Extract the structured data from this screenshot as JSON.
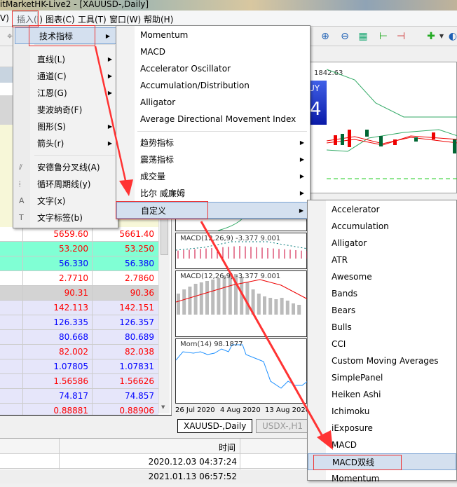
{
  "window": {
    "title": "itMarketHK-Live2 - [XAUUSD-,Daily]"
  },
  "menubar": {
    "items": [
      "V)",
      "插入(I)",
      "图表(C)",
      "工具(T)",
      "窗口(W)",
      "帮助(H)"
    ]
  },
  "insert_menu": {
    "items": [
      {
        "label": "技术指标",
        "submenu": true,
        "highlighted": true
      },
      {
        "label": "直线(L)",
        "submenu": true
      },
      {
        "label": "通道(C)",
        "submenu": true
      },
      {
        "label": "江恩(G)",
        "submenu": true
      },
      {
        "label": "斐波纳奇(F)",
        "submenu": false
      },
      {
        "label": "图形(S)",
        "submenu": true
      },
      {
        "label": "箭头(r)",
        "submenu": true
      },
      {
        "label": "安德鲁分叉线(A)",
        "icon": "andrews-pitchfork-icon"
      },
      {
        "label": "循环周期线(y)",
        "icon": "cycle-lines-icon"
      },
      {
        "label": "文字(x)",
        "icon": "text-icon"
      },
      {
        "label": "文字标签(b)",
        "icon": "text-label-icon"
      }
    ]
  },
  "indicators_menu": {
    "items": [
      {
        "label": "Momentum"
      },
      {
        "label": "MACD"
      },
      {
        "label": "Accelerator Oscillator"
      },
      {
        "label": "Accumulation/Distribution"
      },
      {
        "label": "Alligator"
      },
      {
        "label": "Average Directional Movement Index"
      },
      {
        "label": "趋势指标",
        "submenu": true
      },
      {
        "label": "震荡指标",
        "submenu": true
      },
      {
        "label": "成交量",
        "submenu": true
      },
      {
        "label": "比尔 威廉姆",
        "submenu": true
      },
      {
        "label": "自定义",
        "submenu": true,
        "highlighted": true
      }
    ]
  },
  "custom_menu": {
    "items": [
      "Accelerator",
      "Accumulation",
      "Alligator",
      "ATR",
      "Awesome",
      "Bands",
      "Bears",
      "Bulls",
      "CCI",
      "Custom Moving Averages",
      "SimplePanel",
      "Heiken Ashi",
      "Ichimoku",
      "iExposure",
      "MACD",
      "MACD双线",
      "Momentum"
    ],
    "highlighted": "MACD双线"
  },
  "quotes": {
    "rows": [
      {
        "bid": "5659.60",
        "ask": "5661.40",
        "bid_color": "#ff0000",
        "ask_color": "#ff0000",
        "bg": "#ffffff"
      },
      {
        "bid": "53.200",
        "ask": "53.250",
        "bid_color": "#ff0000",
        "ask_color": "#ff0000",
        "bg": "#80ffd4"
      },
      {
        "bid": "56.330",
        "ask": "56.380",
        "bid_color": "#0000ff",
        "ask_color": "#0000ff",
        "bg": "#80ffd4"
      },
      {
        "bid": "2.7710",
        "ask": "2.7860",
        "bid_color": "#ff0000",
        "ask_color": "#ff0000",
        "bg": "#ffffff"
      },
      {
        "bid": "90.31",
        "ask": "90.36",
        "bid_color": "#ff0000",
        "ask_color": "#ff0000",
        "bg": "#d3d3d3"
      },
      {
        "bid": "142.113",
        "ask": "142.151",
        "bid_color": "#ff0000",
        "ask_color": "#ff0000",
        "bg": "#e6e6fa"
      },
      {
        "bid": "126.335",
        "ask": "126.357",
        "bid_color": "#0000ff",
        "ask_color": "#0000ff",
        "bg": "#e6e6fa"
      },
      {
        "bid": "80.668",
        "ask": "80.689",
        "bid_color": "#0000ff",
        "ask_color": "#0000ff",
        "bg": "#e6e6fa"
      },
      {
        "bid": "82.002",
        "ask": "82.038",
        "bid_color": "#ff0000",
        "ask_color": "#ff0000",
        "bg": "#e6e6fa"
      },
      {
        "bid": "1.07805",
        "ask": "1.07831",
        "bid_color": "#0000ff",
        "ask_color": "#0000ff",
        "bg": "#e6e6fa"
      },
      {
        "bid": "1.56586",
        "ask": "1.56626",
        "bid_color": "#ff0000",
        "ask_color": "#ff0000",
        "bg": "#e6e6fa"
      },
      {
        "bid": "74.817",
        "ask": "74.857",
        "bid_color": "#0000ff",
        "ask_color": "#0000ff",
        "bg": "#e6e6fa"
      },
      {
        "bid": "0.88881",
        "ask": "0.88906",
        "bid_color": "#ff0000",
        "ask_color": "#ff0000",
        "bg": "#e6e6fa"
      }
    ]
  },
  "chart": {
    "price_label": "1842.63",
    "buy_panel": {
      "label": "UY",
      "digit": "4"
    },
    "macd1_label": "MACD(12,26,9) -3.377 9.001",
    "macd2_label": "MACD(12,26,9) -3.377 9.001",
    "mom_label": "Mom(14) 98.1877",
    "dates": [
      "26 Jul 2020",
      "4 Aug 2020",
      "13 Aug 2020"
    ],
    "tabs": [
      {
        "label": "XAUUSD-,Daily",
        "active": true
      },
      {
        "label": "USDX-,H1",
        "active": false
      }
    ]
  },
  "terminal": {
    "time_header": "时间",
    "rows": [
      "2020.12.03 04:37:24",
      "2021.01.13 06:57:52"
    ]
  }
}
